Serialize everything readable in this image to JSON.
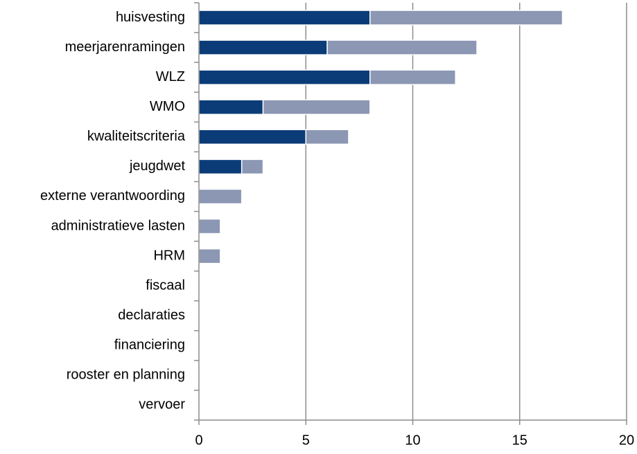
{
  "chart_data": {
    "type": "stacked-barh",
    "categories": [
      "huisvesting",
      "meerjarenramingen",
      "WLZ",
      "WMO",
      "kwaliteitscriteria",
      "jeugdwet",
      "externe verantwoording",
      "administratieve lasten",
      "HRM",
      "fiscaal",
      "declaraties",
      "financiering",
      "rooster en planning",
      "vervoer"
    ],
    "series": [
      {
        "color": "#0b3c78",
        "values": [
          8,
          6,
          8,
          3,
          5,
          2,
          0,
          0,
          0,
          0,
          0,
          0,
          0,
          0
        ]
      },
      {
        "color": "#8b97b3",
        "values": [
          9,
          7,
          4,
          5,
          2,
          1,
          2,
          1,
          1,
          0,
          0,
          0,
          0,
          0
        ]
      }
    ],
    "xlim": [
      0,
      20
    ],
    "xticks": [
      0,
      5,
      10,
      15,
      20
    ],
    "grid": true
  }
}
